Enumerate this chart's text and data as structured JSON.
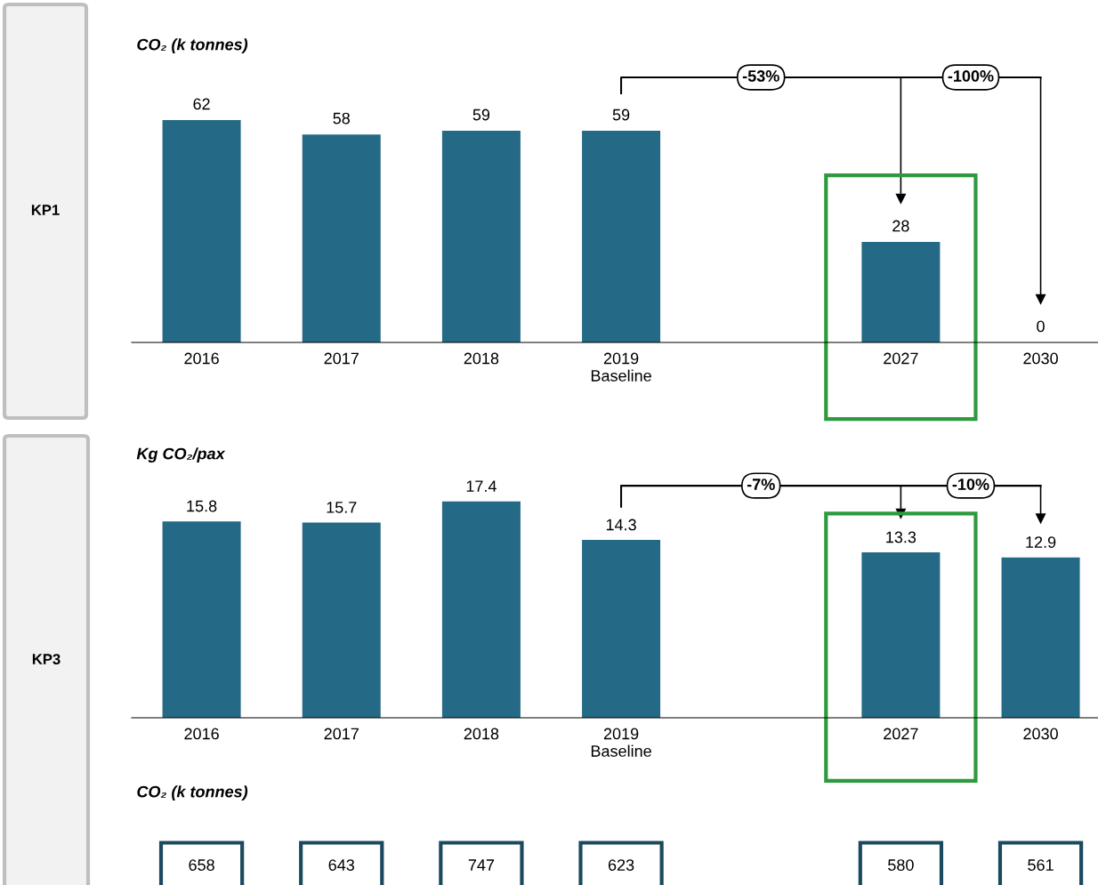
{
  "chart_data": [
    {
      "type": "bar",
      "title": "CO₂ (k tonnes)",
      "ylabel": "KP1",
      "categories": [
        "2016",
        "2017",
        "2018",
        "2019\nBaseline",
        null,
        "2027",
        "2030"
      ],
      "values": [
        62,
        58,
        59,
        59,
        null,
        28,
        0
      ],
      "color": "#246985",
      "data_labels": true,
      "grid": false,
      "legend": false,
      "annotations": [
        "-53%",
        "-100%"
      ]
    },
    {
      "type": "bar",
      "title": "Kg CO₂/pax",
      "ylabel": "KP3",
      "categories": [
        "2016",
        "2017",
        "2018",
        "2019\nBaseline",
        null,
        "2027",
        "2030"
      ],
      "values": [
        15.8,
        15.7,
        17.4,
        14.3,
        null,
        13.3,
        12.9
      ],
      "color": "#246985",
      "data_labels": true,
      "grid": false,
      "legend": false,
      "annotations": [
        "-7%",
        "-10%"
      ]
    },
    {
      "type": "other",
      "title": "CO₂ (k tonnes)",
      "categories": [
        null,
        null,
        null,
        null,
        null,
        null,
        null
      ],
      "values": [
        658,
        643,
        747,
        623,
        null,
        580,
        561
      ],
      "color": "#1b4a5e",
      "data_labels": true
    }
  ]
}
